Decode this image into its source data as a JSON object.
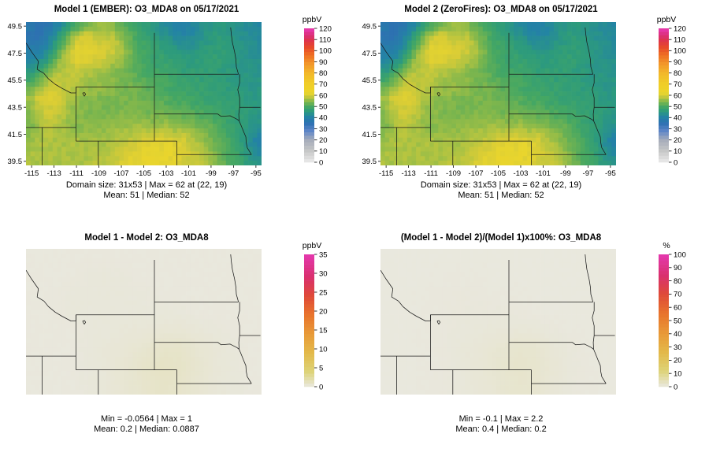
{
  "figure": {
    "background": "#ffffff"
  },
  "chart_data": {
    "type": "heatmap",
    "description": "Four-panel model comparison maps of O3_MDA8 over the northern/central US",
    "panels": [
      {
        "id": "model1",
        "title": "Model 1 (EMBER): O3_MDA8 on 05/17/2021",
        "unit": "ppbV",
        "show_axes": true,
        "grid_ref": "o3",
        "scale_ref": "o3",
        "colorbar": {
          "min": 0,
          "max": 120,
          "ticks": [
            0,
            10,
            20,
            30,
            40,
            50,
            60,
            70,
            80,
            90,
            100,
            110,
            120
          ]
        },
        "caption_line1": "Domain size: 31x53 | Max = 62 at (22, 19)",
        "caption_line2": "Mean: 51 |  Median: 52"
      },
      {
        "id": "model2",
        "title": "Model 2 (ZeroFires): O3_MDA8 on 05/17/2021",
        "unit": "ppbV",
        "show_axes": true,
        "grid_ref": "o3",
        "scale_ref": "o3",
        "colorbar": {
          "min": 0,
          "max": 120,
          "ticks": [
            0,
            10,
            20,
            30,
            40,
            50,
            60,
            70,
            80,
            90,
            100,
            110,
            120
          ]
        },
        "caption_line1": "Domain size: 31x53 | Max = 62 at (22, 19)",
        "caption_line2": "Mean: 51 |  Median: 52"
      },
      {
        "id": "difference",
        "title": "Model 1 - Model 2: O3_MDA8",
        "unit": "ppbV",
        "show_axes": false,
        "grid_ref": "diff",
        "scale_ref": "diff",
        "colorbar": {
          "min": 0,
          "max": 35,
          "ticks": [
            0,
            5,
            10,
            15,
            20,
            25,
            30,
            35
          ]
        },
        "caption_line1": "Min = -0.0564 | Max = 1",
        "caption_line2": "Mean: 0.2 |  Median: 0.0887"
      },
      {
        "id": "percent-difference",
        "title": "(Model 1 - Model 2)/(Model 1)x100%: O3_MDA8",
        "unit": "%",
        "show_axes": false,
        "grid_ref": "pct",
        "scale_ref": "pct",
        "colorbar": {
          "min": 0,
          "max": 100,
          "ticks": [
            0,
            10,
            20,
            30,
            40,
            50,
            60,
            70,
            80,
            90,
            100
          ]
        },
        "caption_line1": "Min = -0.1 | Max = 2.2",
        "caption_line2": "Mean: 0.4 |  Median: 0.2"
      }
    ],
    "axes": {
      "x_ticks": [
        -115,
        -113,
        -111,
        -109,
        -107,
        -105,
        -103,
        -101,
        -99,
        -97,
        -95
      ],
      "y_ticks": [
        49.5,
        47.5,
        45.5,
        43.5,
        41.5,
        39.5
      ],
      "lon_range": [
        -115.5,
        -94.5
      ],
      "lat_range": [
        39.2,
        49.8
      ]
    },
    "grids": {
      "o3": [
        [
          38,
          36,
          37,
          41,
          45,
          50,
          53,
          55,
          56,
          55,
          52,
          50,
          48,
          46,
          44,
          42,
          40,
          40,
          42,
          44,
          45,
          46,
          45,
          44,
          43,
          42
        ],
        [
          36,
          35,
          40,
          45,
          52,
          57,
          60,
          59,
          57,
          58,
          55,
          52,
          49,
          47,
          45,
          44,
          42,
          41,
          42,
          44,
          46,
          46,
          45,
          44,
          43,
          42
        ],
        [
          38,
          37,
          42,
          48,
          55,
          60,
          61,
          60,
          59,
          60,
          57,
          53,
          50,
          49,
          47,
          46,
          44,
          43,
          44,
          45,
          46,
          47,
          46,
          45,
          44,
          43
        ],
        [
          40,
          40,
          44,
          52,
          58,
          61,
          62,
          61,
          60,
          59,
          57,
          54,
          51,
          49,
          48,
          47,
          46,
          45,
          45,
          46,
          47,
          47,
          46,
          45,
          44,
          43
        ],
        [
          42,
          44,
          48,
          55,
          58,
          60,
          61,
          60,
          59,
          57,
          56,
          53,
          51,
          49,
          48,
          48,
          47,
          46,
          46,
          47,
          47,
          47,
          46,
          45,
          44,
          44
        ],
        [
          45,
          49,
          53,
          57,
          58,
          59,
          58,
          57,
          56,
          55,
          54,
          53,
          51,
          50,
          49,
          49,
          48,
          47,
          47,
          47,
          47,
          46,
          46,
          45,
          45,
          44
        ],
        [
          49,
          53,
          57,
          59,
          58,
          58,
          57,
          56,
          55,
          55,
          54,
          53,
          52,
          51,
          50,
          50,
          49,
          48,
          48,
          47,
          47,
          46,
          46,
          45,
          45,
          45
        ],
        [
          53,
          57,
          60,
          59,
          58,
          57,
          56,
          56,
          55,
          55,
          54,
          54,
          53,
          52,
          51,
          50,
          49,
          49,
          48,
          48,
          47,
          47,
          46,
          46,
          45,
          45
        ],
        [
          56,
          60,
          61,
          60,
          58,
          56,
          55,
          55,
          54,
          54,
          54,
          54,
          53,
          53,
          52,
          51,
          50,
          50,
          49,
          48,
          48,
          47,
          47,
          46,
          46,
          45
        ],
        [
          55,
          59,
          60,
          59,
          57,
          55,
          55,
          54,
          54,
          54,
          54,
          54,
          54,
          53,
          53,
          52,
          51,
          51,
          50,
          49,
          49,
          48,
          47,
          47,
          46,
          45
        ],
        [
          54,
          58,
          59,
          58,
          57,
          55,
          55,
          54,
          54,
          54,
          55,
          55,
          55,
          54,
          54,
          54,
          53,
          52,
          52,
          51,
          50,
          49,
          48,
          47,
          46,
          45
        ],
        [
          54,
          57,
          58,
          58,
          56,
          55,
          55,
          55,
          55,
          55,
          56,
          56,
          56,
          56,
          56,
          56,
          55,
          55,
          54,
          53,
          52,
          50,
          48,
          47,
          46,
          44
        ],
        [
          55,
          57,
          58,
          57,
          56,
          56,
          56,
          56,
          56,
          56,
          57,
          57,
          58,
          58,
          59,
          59,
          58,
          58,
          56,
          55,
          53,
          51,
          49,
          47,
          45,
          42
        ],
        [
          56,
          57,
          57,
          57,
          57,
          57,
          57,
          57,
          57,
          57,
          58,
          59,
          60,
          61,
          61,
          61,
          61,
          60,
          58,
          56,
          54,
          52,
          50,
          47,
          44,
          40
        ],
        [
          57,
          57,
          57,
          57,
          57,
          57,
          57,
          57,
          57,
          58,
          59,
          60,
          61,
          62,
          62,
          62,
          61,
          60,
          59,
          57,
          55,
          52,
          50,
          48,
          45,
          42
        ],
        [
          57,
          57,
          57,
          57,
          57,
          57,
          57,
          58,
          58,
          58,
          60,
          61,
          62,
          62,
          62,
          62,
          61,
          60,
          59,
          58,
          56,
          53,
          51,
          49,
          46,
          44
        ]
      ],
      "diff": [
        [
          0.1,
          0.1,
          0.1,
          0.1,
          0.1,
          0.1,
          0.1,
          0.1,
          0.1,
          0.1,
          0.1,
          0.1,
          0.1
        ],
        [
          0.1,
          0.1,
          0.1,
          0.2,
          0.2,
          0.2,
          0.1,
          0.1,
          0.1,
          0.1,
          0.1,
          0.1,
          0.1
        ],
        [
          0.1,
          0.1,
          0.2,
          0.2,
          0.2,
          0.2,
          0.2,
          0.1,
          0.1,
          0.1,
          0.1,
          0.1,
          0.1
        ],
        [
          0.1,
          0.1,
          0.2,
          0.2,
          0.2,
          0.2,
          0.2,
          0.2,
          0.2,
          0.1,
          0.1,
          0.1,
          0.1
        ],
        [
          0.1,
          0.1,
          0.1,
          0.2,
          0.2,
          0.3,
          0.3,
          0.4,
          0.4,
          0.3,
          0.2,
          0.1,
          0.1
        ],
        [
          0.1,
          0.1,
          0.1,
          0.2,
          0.3,
          0.4,
          0.6,
          0.8,
          0.8,
          0.5,
          0.3,
          0.2,
          0.1
        ],
        [
          0.1,
          0.1,
          0.1,
          0.2,
          0.3,
          0.5,
          0.8,
          1.0,
          0.9,
          0.6,
          0.3,
          0.2,
          0.1
        ],
        [
          0.1,
          0.1,
          0.1,
          0.2,
          0.3,
          0.5,
          0.7,
          0.9,
          0.8,
          0.5,
          0.3,
          0.2,
          0.1
        ]
      ],
      "pct": [
        [
          0.2,
          0.2,
          0.2,
          0.2,
          0.2,
          0.2,
          0.2,
          0.2,
          0.2,
          0.2,
          0.2,
          0.2,
          0.2
        ],
        [
          0.2,
          0.2,
          0.2,
          0.3,
          0.3,
          0.3,
          0.2,
          0.2,
          0.2,
          0.2,
          0.2,
          0.2,
          0.2
        ],
        [
          0.2,
          0.2,
          0.3,
          0.4,
          0.4,
          0.4,
          0.3,
          0.3,
          0.2,
          0.2,
          0.2,
          0.2,
          0.2
        ],
        [
          0.2,
          0.2,
          0.3,
          0.4,
          0.5,
          0.5,
          0.5,
          0.4,
          0.3,
          0.2,
          0.2,
          0.2,
          0.2
        ],
        [
          0.2,
          0.2,
          0.3,
          0.4,
          0.6,
          0.7,
          0.8,
          0.9,
          0.8,
          0.5,
          0.3,
          0.2,
          0.2
        ],
        [
          0.2,
          0.2,
          0.3,
          0.4,
          0.7,
          1.0,
          1.5,
          1.9,
          1.8,
          1.0,
          0.5,
          0.3,
          0.2
        ],
        [
          0.2,
          0.2,
          0.3,
          0.4,
          0.7,
          1.1,
          1.7,
          2.2,
          2.0,
          1.2,
          0.6,
          0.3,
          0.2
        ],
        [
          0.2,
          0.2,
          0.3,
          0.4,
          0.6,
          1.0,
          1.5,
          2.0,
          1.8,
          1.0,
          0.5,
          0.3,
          0.2
        ]
      ]
    },
    "colorscales": {
      "o3": [
        [
          0,
          "#eaeaea"
        ],
        [
          10,
          "#c8c8c8"
        ],
        [
          20,
          "#a6adba"
        ],
        [
          28,
          "#5e86c8"
        ],
        [
          35,
          "#2e70b2"
        ],
        [
          41,
          "#2384a4"
        ],
        [
          46,
          "#2d9b7c"
        ],
        [
          50,
          "#45a763"
        ],
        [
          54,
          "#79b54e"
        ],
        [
          57,
          "#abc243"
        ],
        [
          60,
          "#d8cc36"
        ],
        [
          62,
          "#e8d52e"
        ],
        [
          66,
          "#eed228"
        ],
        [
          72,
          "#f0cb28"
        ],
        [
          80,
          "#f2b82a"
        ],
        [
          88,
          "#f2982a"
        ],
        [
          96,
          "#ee7024"
        ],
        [
          103,
          "#e84b28"
        ],
        [
          109,
          "#de3448"
        ],
        [
          114,
          "#da2f78"
        ],
        [
          120,
          "#e93ab5"
        ]
      ],
      "diff": [
        [
          0,
          "#e9e8df"
        ],
        [
          4,
          "#ddd377"
        ],
        [
          9,
          "#e3b94a"
        ],
        [
          14,
          "#e89a38"
        ],
        [
          19,
          "#e8742c"
        ],
        [
          24,
          "#df4a38"
        ],
        [
          29,
          "#d9306e"
        ],
        [
          35,
          "#e438ae"
        ]
      ],
      "pct": [
        [
          0,
          "#e9e8df"
        ],
        [
          12,
          "#ddd377"
        ],
        [
          26,
          "#e3b94a"
        ],
        [
          40,
          "#e89a38"
        ],
        [
          55,
          "#e8742c"
        ],
        [
          70,
          "#df4a38"
        ],
        [
          84,
          "#d9306e"
        ],
        [
          100,
          "#e438ae"
        ]
      ]
    },
    "map_borders": [
      [
        [
          -115.5,
          48.25
        ],
        [
          -115.0,
          47.6
        ],
        [
          -114.4,
          46.9
        ],
        [
          -114.5,
          46.3
        ],
        [
          -113.9,
          46.0
        ],
        [
          -113.5,
          45.6
        ],
        [
          -112.9,
          45.2
        ],
        [
          -112.3,
          44.9
        ],
        [
          -111.5,
          44.56
        ],
        [
          -111.05,
          44.56
        ],
        [
          -111.05,
          45.0
        ]
      ],
      [
        [
          -111.05,
          45.0
        ],
        [
          -104.05,
          45.0
        ]
      ],
      [
        [
          -104.05,
          49.0
        ],
        [
          -104.05,
          41.0
        ]
      ],
      [
        [
          -104.05,
          45.94
        ],
        [
          -96.56,
          45.94
        ]
      ],
      [
        [
          -96.56,
          45.94
        ],
        [
          -96.75,
          46.5
        ],
        [
          -96.78,
          47.0
        ],
        [
          -96.9,
          47.6
        ],
        [
          -97.1,
          48.3
        ],
        [
          -97.2,
          48.9
        ],
        [
          -97.25,
          49.4
        ]
      ],
      [
        [
          -96.45,
          45.94
        ],
        [
          -96.45,
          45.3
        ],
        [
          -96.62,
          44.8
        ],
        [
          -96.45,
          44.2
        ],
        [
          -96.45,
          43.5
        ],
        [
          -96.53,
          43.0
        ],
        [
          -96.5,
          42.5
        ]
      ],
      [
        [
          -96.45,
          43.5
        ],
        [
          -94.6,
          43.5
        ]
      ],
      [
        [
          -104.05,
          43.0
        ],
        [
          -98.4,
          43.0
        ],
        [
          -98.1,
          42.82
        ],
        [
          -97.3,
          42.87
        ],
        [
          -96.7,
          42.62
        ],
        [
          -96.5,
          42.5
        ]
      ],
      [
        [
          -96.5,
          42.5
        ],
        [
          -96.3,
          42.1
        ],
        [
          -96.1,
          41.7
        ],
        [
          -95.9,
          41.3
        ],
        [
          -95.87,
          40.9
        ],
        [
          -95.77,
          40.5
        ],
        [
          -95.4,
          40.0
        ]
      ],
      [
        [
          -102.05,
          40.0
        ],
        [
          -95.4,
          40.0
        ]
      ],
      [
        [
          -102.05,
          41.0
        ],
        [
          -102.05,
          39.1
        ]
      ],
      [
        [
          -111.05,
          41.0
        ],
        [
          -102.05,
          41.0
        ]
      ],
      [
        [
          -111.05,
          45.0
        ],
        [
          -111.05,
          41.0
        ]
      ],
      [
        [
          -109.05,
          41.0
        ],
        [
          -109.05,
          39.1
        ]
      ],
      [
        [
          -115.6,
          42.0
        ],
        [
          -111.05,
          42.0
        ]
      ],
      [
        [
          -114.05,
          42.0
        ],
        [
          -114.05,
          39.1
        ]
      ]
    ],
    "lake": [
      [
        -110.45,
        44.55
      ],
      [
        -110.28,
        44.58
      ],
      [
        -110.18,
        44.46
      ],
      [
        -110.3,
        44.32
      ],
      [
        -110.38,
        44.42
      ],
      [
        -110.45,
        44.55
      ]
    ]
  }
}
